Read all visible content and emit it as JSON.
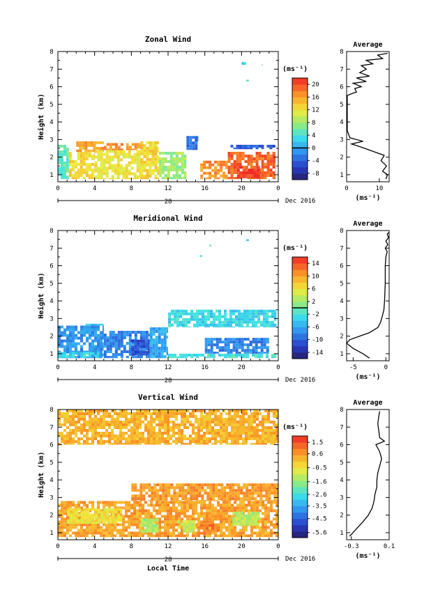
{
  "chart_data": [
    {
      "type": "heatmap",
      "title": "Zonal Wind",
      "ylabel": "Height (km)",
      "xlim": [
        0,
        24
      ],
      "ylim": [
        0.6,
        8
      ],
      "xticks": [
        "0",
        "4",
        "8",
        "12",
        "16",
        "20",
        "0"
      ],
      "yticks": [
        "1",
        "2",
        "3",
        "4",
        "5",
        "6",
        "7",
        "8"
      ],
      "date_day": "28",
      "date_label": "Dec 2016",
      "colorbar": {
        "unit_label": "(ms⁻¹)",
        "range": [
          -10,
          22
        ],
        "ticks": [
          "20",
          "16",
          "12",
          "8",
          "4",
          "0",
          "-4",
          "-8"
        ],
        "tick_values": [
          20,
          16,
          12,
          8,
          4,
          0,
          -4,
          -8
        ],
        "contour_value": 0
      },
      "regions": [
        {
          "x0": 0.0,
          "x1": 1.2,
          "y0": 0.75,
          "y1": 2.7,
          "value": 5
        },
        {
          "x0": 1.2,
          "x1": 4.0,
          "y0": 0.75,
          "y1": 2.3,
          "value": 13
        },
        {
          "x0": 2.0,
          "x1": 5.0,
          "y0": 2.3,
          "y1": 2.9,
          "value": 16
        },
        {
          "x0": 4.0,
          "x1": 9.0,
          "y0": 0.75,
          "y1": 2.4,
          "value": 12
        },
        {
          "x0": 5.0,
          "x1": 9.0,
          "y0": 2.4,
          "y1": 2.8,
          "value": 17
        },
        {
          "x0": 9.0,
          "x1": 11.0,
          "y0": 0.75,
          "y1": 2.9,
          "value": 13
        },
        {
          "x0": 11.0,
          "x1": 14.0,
          "y0": 0.75,
          "y1": 2.3,
          "value": 8
        },
        {
          "x0": 15.5,
          "x1": 18.5,
          "y0": 0.75,
          "y1": 1.8,
          "value": 17
        },
        {
          "x0": 18.5,
          "x1": 23.7,
          "y0": 0.75,
          "y1": 2.3,
          "value": 19
        },
        {
          "x0": 19.5,
          "x1": 22.0,
          "y0": 0.8,
          "y1": 1.5,
          "value": 21
        },
        {
          "x0": 18.8,
          "x1": 23.7,
          "y0": 2.45,
          "y1": 2.7,
          "value": -4
        },
        {
          "x0": 14.0,
          "x1": 15.3,
          "y0": 2.4,
          "y1": 3.2,
          "value": -3
        },
        {
          "x0": 20.0,
          "x1": 20.5,
          "y0": 7.25,
          "y1": 7.4,
          "value": 3
        },
        {
          "x0": 21.9,
          "x1": 22.3,
          "y0": 7.2,
          "y1": 7.3,
          "value": 4
        },
        {
          "x0": 20.5,
          "x1": 20.8,
          "y0": 6.3,
          "y1": 6.4,
          "value": 3
        }
      ],
      "average": {
        "xlim": [
          0,
          13
        ],
        "xticks": [
          "0",
          "10"
        ],
        "tick_values": [
          0,
          10
        ],
        "xlabel": "(ms⁻¹)",
        "title": "Average",
        "profile": [
          [
            12.0,
            0.75
          ],
          [
            12.5,
            1.0
          ],
          [
            11.0,
            1.2
          ],
          [
            12.2,
            1.5
          ],
          [
            10.5,
            1.8
          ],
          [
            11.5,
            2.1
          ],
          [
            7.0,
            2.4
          ],
          [
            4.0,
            2.6
          ],
          [
            1.5,
            2.75
          ],
          [
            5.0,
            2.9
          ],
          [
            1.0,
            3.1
          ],
          [
            0.2,
            3.5
          ],
          [
            0.2,
            5.5
          ],
          [
            1.5,
            5.6
          ],
          [
            3.0,
            5.7
          ],
          [
            2.5,
            5.9
          ],
          [
            4.5,
            6.0
          ],
          [
            2.0,
            6.2
          ],
          [
            6.0,
            6.3
          ],
          [
            3.0,
            6.5
          ],
          [
            7.0,
            6.6
          ],
          [
            4.0,
            6.8
          ],
          [
            6.0,
            7.0
          ],
          [
            4.5,
            7.2
          ],
          [
            8.0,
            7.3
          ],
          [
            6.0,
            7.5
          ],
          [
            11.0,
            7.6
          ],
          [
            9.5,
            7.8
          ],
          [
            12.5,
            7.9
          ]
        ]
      }
    },
    {
      "type": "heatmap",
      "title": "Meridional Wind",
      "ylabel": "Height (km)",
      "xlim": [
        0,
        24
      ],
      "ylim": [
        0.6,
        8
      ],
      "xticks": [
        "0",
        "4",
        "8",
        "12",
        "16",
        "20",
        "0"
      ],
      "yticks": [
        "1",
        "2",
        "3",
        "4",
        "5",
        "6",
        "7",
        "8"
      ],
      "date_day": "28",
      "date_label": "Dec 2016",
      "colorbar": {
        "unit_label": "(ms⁻¹)",
        "range": [
          -16,
          16
        ],
        "ticks": [
          "14",
          "10",
          "6",
          "2",
          "-2",
          "-6",
          "-10",
          "-14"
        ],
        "tick_values": [
          14,
          10,
          6,
          2,
          -2,
          -6,
          -10,
          -14
        ],
        "contour_value": 0
      },
      "regions": [
        {
          "x0": 0.0,
          "x1": 5.0,
          "y0": 0.75,
          "y1": 2.6,
          "value": -7
        },
        {
          "x0": 0.0,
          "x1": 4.5,
          "y0": 0.75,
          "y1": 1.1,
          "value": -3
        },
        {
          "x0": 3.0,
          "x1": 5.0,
          "y0": 2.6,
          "y1": 2.7,
          "value": -4
        },
        {
          "x0": 5.0,
          "x1": 10.0,
          "y0": 0.75,
          "y1": 2.3,
          "value": -8
        },
        {
          "x0": 8.0,
          "x1": 10.0,
          "y0": 0.9,
          "y1": 1.8,
          "value": -11
        },
        {
          "x0": 10.0,
          "x1": 12.0,
          "y0": 0.75,
          "y1": 2.5,
          "value": -6
        },
        {
          "x0": 12.0,
          "x1": 23.8,
          "y0": 0.75,
          "y1": 1.0,
          "value": -2
        },
        {
          "x0": 16.0,
          "x1": 23.0,
          "y0": 1.0,
          "y1": 1.9,
          "value": -8
        },
        {
          "x0": 12.0,
          "x1": 23.8,
          "y0": 2.5,
          "y1": 3.5,
          "value": -3
        },
        {
          "x0": 16.5,
          "x1": 16.7,
          "y0": 7.1,
          "y1": 7.2,
          "value": -3
        },
        {
          "x0": 20.5,
          "x1": 20.8,
          "y0": 7.4,
          "y1": 7.5,
          "value": -3
        },
        {
          "x0": 15.5,
          "x1": 15.7,
          "y0": 6.5,
          "y1": 6.6,
          "value": -3
        }
      ],
      "average": {
        "xlim": [
          -6,
          0.5
        ],
        "xticks": [
          "-5",
          "0"
        ],
        "tick_values": [
          -5,
          0
        ],
        "xlabel": "(ms⁻¹)",
        "title": "Average",
        "profile": [
          [
            -2.5,
            0.75
          ],
          [
            -3.5,
            1.0
          ],
          [
            -5.0,
            1.3
          ],
          [
            -6.0,
            1.6
          ],
          [
            -5.5,
            1.8
          ],
          [
            -4.0,
            2.0
          ],
          [
            -2.5,
            2.2
          ],
          [
            -1.2,
            2.5
          ],
          [
            -0.8,
            2.8
          ],
          [
            -0.5,
            3.2
          ],
          [
            -0.3,
            3.5
          ],
          [
            -0.2,
            4.0
          ],
          [
            -0.1,
            5.0
          ],
          [
            -0.1,
            6.0
          ],
          [
            0.0,
            6.5
          ],
          [
            0.2,
            6.8
          ],
          [
            -0.1,
            7.0
          ],
          [
            0.3,
            7.2
          ],
          [
            0.0,
            7.4
          ],
          [
            0.4,
            7.6
          ],
          [
            0.2,
            7.8
          ],
          [
            0.5,
            7.9
          ]
        ]
      }
    },
    {
      "type": "heatmap",
      "title": "Vertical Wind",
      "ylabel": "Height (km)",
      "xlabel": "Local Time",
      "xlim": [
        0,
        24
      ],
      "ylim": [
        0.6,
        8
      ],
      "xticks": [
        "0",
        "4",
        "8",
        "12",
        "16",
        "20",
        "0"
      ],
      "yticks": [
        "1",
        "2",
        "3",
        "4",
        "5",
        "6",
        "7",
        "8"
      ],
      "date_day": "28",
      "date_label": "Dec 2016",
      "colorbar": {
        "unit_label": "(ms⁻¹)",
        "range": [
          -6,
          2
        ],
        "ticks": [
          "1.5",
          "0.6",
          "-0.5",
          "-1.6",
          "-2.6",
          "-3.5",
          "-4.5",
          "-5.6"
        ],
        "tick_values": [
          1.5,
          0.6,
          -0.5,
          -1.6,
          -2.6,
          -3.5,
          -4.5,
          -5.6
        ]
      },
      "regions": [
        {
          "x0": 0.0,
          "x1": 24.0,
          "y0": 6.0,
          "y1": 8.0,
          "value": 0.3
        },
        {
          "x0": 0.0,
          "x1": 24.0,
          "y0": 0.75,
          "y1": 2.8,
          "value": 0.5
        },
        {
          "x0": 8.0,
          "x1": 24.0,
          "y0": 2.8,
          "y1": 3.8,
          "value": 0.6
        },
        {
          "x0": 1.0,
          "x1": 7.0,
          "y0": 1.5,
          "y1": 2.4,
          "value": -0.5
        },
        {
          "x0": 9.0,
          "x1": 11.0,
          "y0": 1.0,
          "y1": 1.8,
          "value": -1.4
        },
        {
          "x0": 13.0,
          "x1": 15.0,
          "y0": 1.0,
          "y1": 1.7,
          "value": -1.0
        },
        {
          "x0": 19.0,
          "x1": 22.0,
          "y0": 1.4,
          "y1": 2.2,
          "value": -1.2
        },
        {
          "x0": 15.5,
          "x1": 17.5,
          "y0": 0.9,
          "y1": 1.5,
          "value": 1.0
        }
      ],
      "average": {
        "xlim": [
          -0.35,
          0.1
        ],
        "xticks": [
          "-0.3",
          "0.1"
        ],
        "tick_values": [
          -0.3,
          0.1
        ],
        "xlabel": "(ms⁻¹)",
        "title": "Average",
        "profile": [
          [
            -0.32,
            0.8
          ],
          [
            -0.3,
            0.9
          ],
          [
            -0.25,
            1.2
          ],
          [
            -0.18,
            1.6
          ],
          [
            -0.12,
            2.0
          ],
          [
            -0.08,
            2.4
          ],
          [
            -0.06,
            2.8
          ],
          [
            -0.05,
            3.2
          ],
          [
            -0.03,
            3.6
          ],
          [
            -0.03,
            4.0
          ],
          [
            -0.02,
            4.4
          ],
          [
            0.02,
            5.2
          ],
          [
            0.0,
            5.6
          ],
          [
            -0.04,
            6.0
          ],
          [
            0.05,
            6.2
          ],
          [
            0.0,
            6.4
          ],
          [
            -0.01,
            6.8
          ],
          [
            -0.02,
            7.2
          ],
          [
            -0.01,
            7.6
          ],
          [
            0.0,
            7.9
          ]
        ]
      }
    }
  ]
}
